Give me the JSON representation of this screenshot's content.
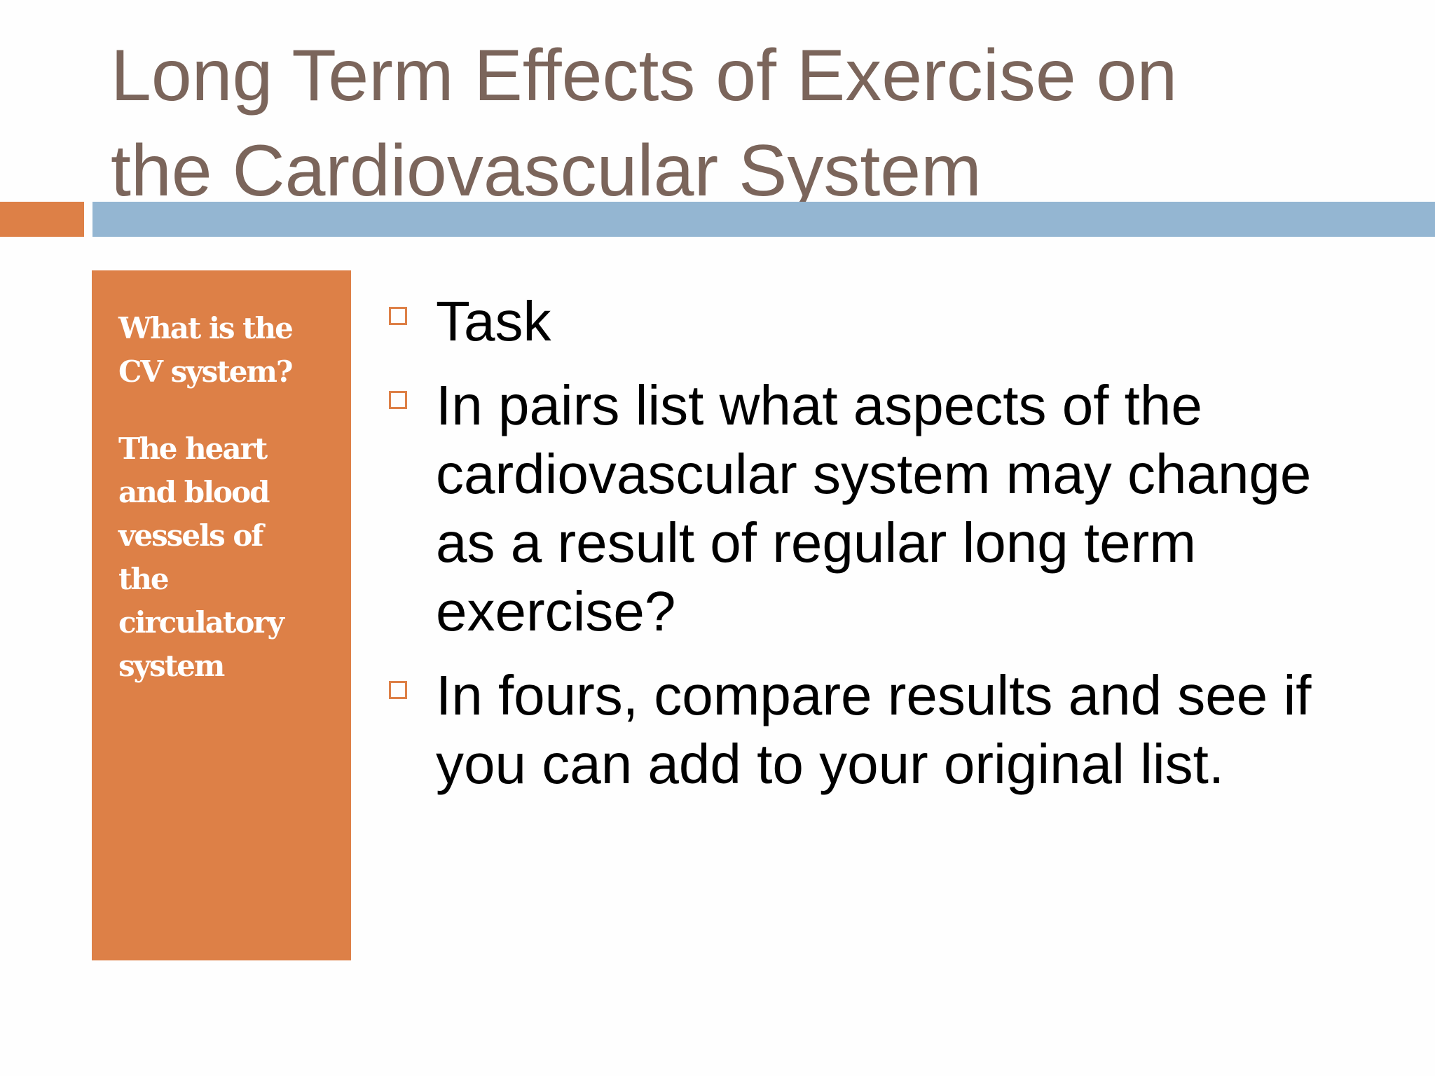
{
  "slide": {
    "title_lines": [
      "Long Term Effects of Exercise on",
      "the Cardiovascular System"
    ],
    "side_panel": {
      "paragraphs": [
        [
          "What is the",
          "CV system?"
        ],
        [
          "The heart",
          "and blood",
          "vessels of",
          "the",
          "circulatory",
          "system"
        ]
      ]
    },
    "bullets": [
      {
        "lines": [
          "Task"
        ]
      },
      {
        "lines": [
          "In pairs list what aspects of the",
          "cardiovascular system may change",
          "as a result of regular long term",
          "exercise?"
        ]
      },
      {
        "lines": [
          "In fours, compare results and see if",
          "you can add to your original list."
        ]
      }
    ],
    "bullet_icon": "hollow-square-icon",
    "colors": {
      "title": "#7b655b",
      "accent_orange": "#dd8047",
      "accent_blue": "#94b6d2",
      "side_text": "#ffffff",
      "body_text": "#000000"
    }
  }
}
